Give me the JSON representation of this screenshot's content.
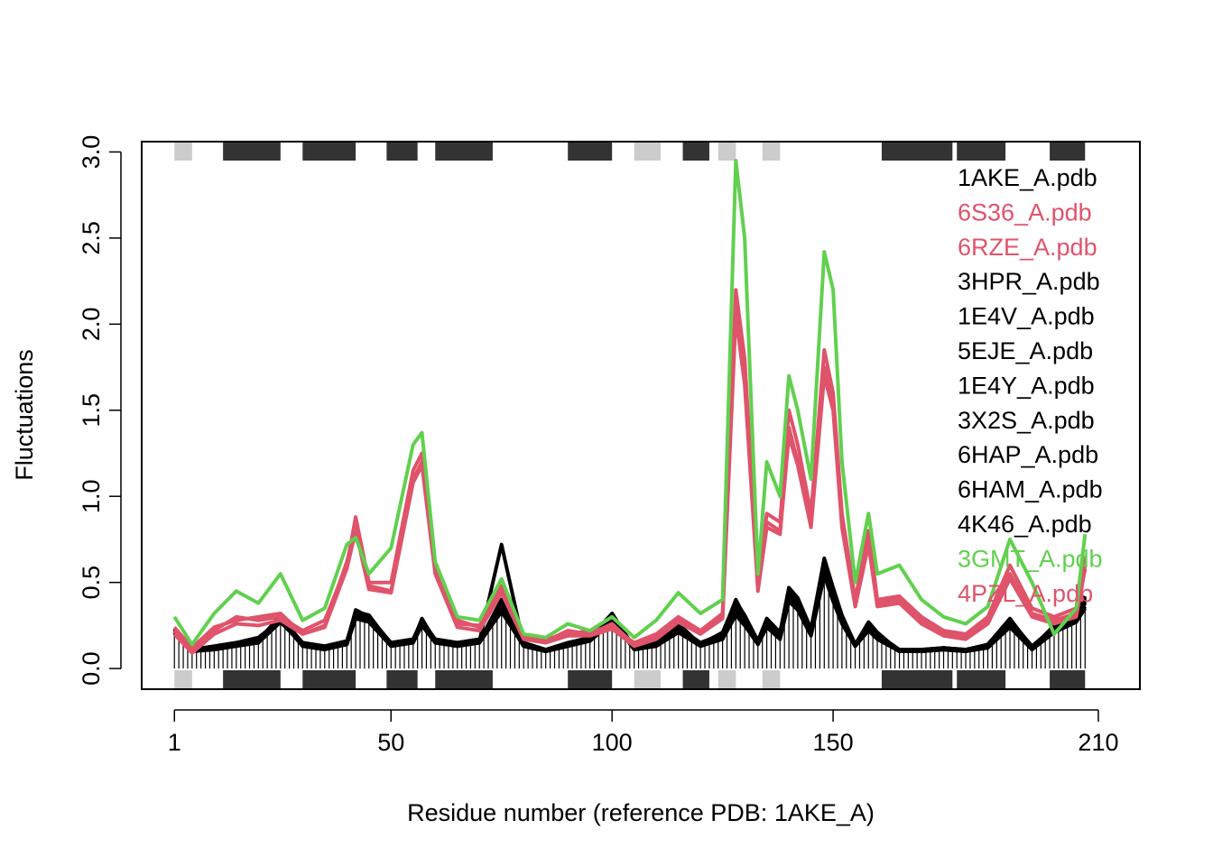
{
  "chart_data": {
    "type": "line",
    "title": "",
    "xlabel": "Residue number (reference PDB: 1AKE_A)",
    "ylabel": "Fluctuations",
    "xlim": [
      -6.4,
      219.4
    ],
    "ylim": [
      -0.12,
      3.06
    ],
    "xticks": [
      1,
      50,
      100,
      150,
      210
    ],
    "xtick_labels": [
      "1",
      "50",
      "100",
      "150",
      "210"
    ],
    "yticks": [
      0.0,
      0.5,
      1.0,
      1.5,
      2.0,
      2.5,
      3.0
    ],
    "ytick_labels": [
      "0.0",
      "0.5",
      "1.0",
      "1.5",
      "2.0",
      "2.5",
      "3.0"
    ],
    "grid": false,
    "legend_position": "right",
    "colors": {
      "black": "#000000",
      "red": "#DF536B",
      "green": "#61D04F",
      "sse_dark": "#333333",
      "sse_light": "#cccccc"
    },
    "secondary_structure": [
      {
        "start": 1,
        "end": 5,
        "type": "strand"
      },
      {
        "start": 12,
        "end": 25,
        "type": "helix"
      },
      {
        "start": 30,
        "end": 42,
        "type": "helix"
      },
      {
        "start": 49,
        "end": 56,
        "type": "helix"
      },
      {
        "start": 60,
        "end": 73,
        "type": "helix"
      },
      {
        "start": 90,
        "end": 100,
        "type": "helix"
      },
      {
        "start": 105,
        "end": 111,
        "type": "strand"
      },
      {
        "start": 116,
        "end": 122,
        "type": "helix"
      },
      {
        "start": 124,
        "end": 128,
        "type": "strand"
      },
      {
        "start": 134,
        "end": 138,
        "type": "strand"
      },
      {
        "start": 161,
        "end": 177,
        "type": "helix"
      },
      {
        "start": 178,
        "end": 189,
        "type": "helix"
      },
      {
        "start": 199,
        "end": 207,
        "type": "helix"
      }
    ],
    "x": [
      1,
      5,
      10,
      15,
      20,
      25,
      30,
      35,
      40,
      42,
      45,
      50,
      55,
      57,
      60,
      65,
      70,
      75,
      80,
      85,
      90,
      95,
      100,
      105,
      110,
      115,
      120,
      125,
      128,
      130,
      133,
      135,
      138,
      140,
      142,
      145,
      148,
      150,
      152,
      155,
      158,
      160,
      165,
      170,
      175,
      180,
      185,
      190,
      195,
      200,
      205,
      207
    ],
    "series": [
      {
        "name": "1AKE_A.pdb",
        "color": "#000000",
        "values": [
          0.22,
          0.1,
          0.12,
          0.14,
          0.16,
          0.3,
          0.14,
          0.12,
          0.15,
          0.33,
          0.3,
          0.14,
          0.16,
          0.28,
          0.16,
          0.14,
          0.16,
          0.38,
          0.14,
          0.1,
          0.14,
          0.18,
          0.3,
          0.12,
          0.14,
          0.24,
          0.14,
          0.2,
          0.38,
          0.3,
          0.16,
          0.28,
          0.2,
          0.45,
          0.4,
          0.22,
          0.62,
          0.45,
          0.3,
          0.14,
          0.26,
          0.2,
          0.1,
          0.1,
          0.12,
          0.1,
          0.14,
          0.28,
          0.12,
          0.24,
          0.3,
          0.4
        ]
      },
      {
        "name": "6S36_A.pdb",
        "color": "#DF536B",
        "values": [
          0.22,
          0.1,
          0.22,
          0.3,
          0.28,
          0.3,
          0.22,
          0.28,
          0.6,
          0.88,
          0.5,
          0.5,
          1.15,
          1.25,
          0.6,
          0.28,
          0.24,
          0.48,
          0.18,
          0.16,
          0.22,
          0.2,
          0.26,
          0.14,
          0.18,
          0.28,
          0.22,
          0.32,
          2.2,
          1.8,
          0.5,
          0.9,
          0.85,
          1.5,
          1.3,
          0.9,
          1.85,
          1.6,
          0.9,
          0.4,
          0.8,
          0.4,
          0.42,
          0.3,
          0.22,
          0.2,
          0.3,
          0.6,
          0.35,
          0.3,
          0.35,
          0.65
        ]
      },
      {
        "name": "6RZE_A.pdb",
        "color": "#DF536B",
        "values": [
          0.24,
          0.12,
          0.24,
          0.28,
          0.3,
          0.32,
          0.2,
          0.25,
          0.62,
          0.82,
          0.48,
          0.45,
          1.1,
          1.2,
          0.58,
          0.26,
          0.25,
          0.45,
          0.2,
          0.17,
          0.2,
          0.22,
          0.24,
          0.15,
          0.2,
          0.3,
          0.22,
          0.3,
          2.1,
          1.7,
          0.48,
          0.85,
          0.8,
          1.4,
          1.2,
          0.85,
          1.75,
          1.55,
          0.85,
          0.38,
          0.75,
          0.38,
          0.4,
          0.28,
          0.2,
          0.18,
          0.28,
          0.55,
          0.32,
          0.28,
          0.32,
          0.6
        ]
      },
      {
        "name": "3HPR_A.pdb",
        "color": "#000000",
        "values": [
          0.2,
          0.11,
          0.13,
          0.15,
          0.18,
          0.28,
          0.15,
          0.13,
          0.16,
          0.3,
          0.28,
          0.15,
          0.17,
          0.26,
          0.17,
          0.15,
          0.17,
          0.35,
          0.15,
          0.11,
          0.15,
          0.17,
          0.28,
          0.13,
          0.15,
          0.22,
          0.15,
          0.18,
          0.34,
          0.27,
          0.15,
          0.25,
          0.18,
          0.42,
          0.36,
          0.2,
          0.58,
          0.42,
          0.27,
          0.13,
          0.24,
          0.18,
          0.11,
          0.11,
          0.12,
          0.11,
          0.13,
          0.25,
          0.13,
          0.22,
          0.28,
          0.38
        ]
      },
      {
        "name": "1E4V_A.pdb",
        "color": "#000000",
        "values": [
          0.21,
          0.1,
          0.12,
          0.13,
          0.17,
          0.27,
          0.14,
          0.12,
          0.15,
          0.32,
          0.27,
          0.14,
          0.16,
          0.27,
          0.16,
          0.14,
          0.16,
          0.4,
          0.14,
          0.1,
          0.14,
          0.17,
          0.29,
          0.12,
          0.14,
          0.23,
          0.14,
          0.19,
          0.36,
          0.28,
          0.16,
          0.27,
          0.19,
          0.44,
          0.38,
          0.21,
          0.6,
          0.44,
          0.29,
          0.13,
          0.25,
          0.19,
          0.1,
          0.1,
          0.11,
          0.1,
          0.13,
          0.27,
          0.12,
          0.23,
          0.29,
          0.39
        ]
      },
      {
        "name": "5EJE_A.pdb",
        "color": "#000000",
        "values": [
          0.22,
          0.11,
          0.12,
          0.14,
          0.16,
          0.29,
          0.15,
          0.12,
          0.15,
          0.31,
          0.29,
          0.14,
          0.16,
          0.27,
          0.16,
          0.14,
          0.16,
          0.36,
          0.14,
          0.1,
          0.14,
          0.18,
          0.31,
          0.12,
          0.14,
          0.25,
          0.14,
          0.2,
          0.4,
          0.3,
          0.16,
          0.29,
          0.2,
          0.46,
          0.4,
          0.22,
          0.62,
          0.46,
          0.3,
          0.14,
          0.26,
          0.2,
          0.1,
          0.1,
          0.12,
          0.1,
          0.14,
          0.28,
          0.12,
          0.24,
          0.3,
          0.41
        ]
      },
      {
        "name": "1E4Y_A.pdb",
        "color": "#000000",
        "values": [
          0.23,
          0.1,
          0.12,
          0.14,
          0.16,
          0.3,
          0.14,
          0.12,
          0.15,
          0.34,
          0.3,
          0.14,
          0.16,
          0.28,
          0.16,
          0.14,
          0.16,
          0.72,
          0.14,
          0.1,
          0.14,
          0.18,
          0.3,
          0.12,
          0.14,
          0.24,
          0.14,
          0.2,
          0.38,
          0.3,
          0.16,
          0.28,
          0.2,
          0.45,
          0.4,
          0.22,
          0.62,
          0.45,
          0.3,
          0.14,
          0.26,
          0.2,
          0.1,
          0.1,
          0.12,
          0.1,
          0.14,
          0.28,
          0.12,
          0.24,
          0.3,
          0.4
        ]
      },
      {
        "name": "3X2S_A.pdb",
        "color": "#000000",
        "values": [
          0.21,
          0.1,
          0.11,
          0.13,
          0.15,
          0.28,
          0.13,
          0.11,
          0.14,
          0.3,
          0.28,
          0.13,
          0.15,
          0.26,
          0.15,
          0.13,
          0.15,
          0.34,
          0.13,
          0.1,
          0.13,
          0.17,
          0.28,
          0.11,
          0.13,
          0.22,
          0.13,
          0.18,
          0.32,
          0.26,
          0.15,
          0.25,
          0.18,
          0.4,
          0.35,
          0.2,
          0.55,
          0.4,
          0.27,
          0.13,
          0.23,
          0.18,
          0.1,
          0.1,
          0.11,
          0.1,
          0.13,
          0.25,
          0.11,
          0.22,
          0.28,
          0.36
        ]
      },
      {
        "name": "6HAP_A.pdb",
        "color": "#000000",
        "values": [
          0.22,
          0.1,
          0.12,
          0.14,
          0.16,
          0.31,
          0.14,
          0.12,
          0.15,
          0.33,
          0.31,
          0.14,
          0.16,
          0.29,
          0.16,
          0.14,
          0.16,
          0.37,
          0.14,
          0.1,
          0.14,
          0.18,
          0.32,
          0.12,
          0.14,
          0.26,
          0.14,
          0.21,
          0.39,
          0.31,
          0.16,
          0.29,
          0.21,
          0.47,
          0.41,
          0.23,
          0.64,
          0.47,
          0.31,
          0.14,
          0.27,
          0.21,
          0.1,
          0.1,
          0.12,
          0.1,
          0.14,
          0.29,
          0.12,
          0.25,
          0.31,
          0.42
        ]
      },
      {
        "name": "6HAM_A.pdb",
        "color": "#000000",
        "values": [
          0.2,
          0.1,
          0.12,
          0.14,
          0.15,
          0.27,
          0.14,
          0.12,
          0.14,
          0.29,
          0.27,
          0.13,
          0.15,
          0.25,
          0.15,
          0.13,
          0.15,
          0.33,
          0.13,
          0.1,
          0.13,
          0.16,
          0.27,
          0.12,
          0.13,
          0.21,
          0.13,
          0.17,
          0.31,
          0.25,
          0.14,
          0.24,
          0.17,
          0.39,
          0.34,
          0.19,
          0.54,
          0.39,
          0.26,
          0.13,
          0.22,
          0.17,
          0.1,
          0.1,
          0.11,
          0.1,
          0.12,
          0.24,
          0.11,
          0.21,
          0.27,
          0.35
        ]
      },
      {
        "name": "4K46_A.pdb",
        "color": "#000000",
        "values": [
          0.22,
          0.11,
          0.13,
          0.15,
          0.17,
          0.3,
          0.15,
          0.13,
          0.16,
          0.33,
          0.3,
          0.15,
          0.17,
          0.28,
          0.17,
          0.15,
          0.17,
          0.37,
          0.15,
          0.11,
          0.15,
          0.18,
          0.3,
          0.13,
          0.15,
          0.24,
          0.15,
          0.2,
          0.37,
          0.29,
          0.16,
          0.28,
          0.2,
          0.45,
          0.39,
          0.22,
          0.61,
          0.45,
          0.3,
          0.14,
          0.26,
          0.2,
          0.11,
          0.11,
          0.12,
          0.11,
          0.14,
          0.28,
          0.13,
          0.24,
          0.3,
          0.4
        ]
      },
      {
        "name": "3GMT_A.pdb",
        "color": "#61D04F",
        "values": [
          0.3,
          0.14,
          0.32,
          0.45,
          0.38,
          0.55,
          0.28,
          0.35,
          0.72,
          0.76,
          0.55,
          0.7,
          1.3,
          1.37,
          0.62,
          0.3,
          0.28,
          0.52,
          0.2,
          0.18,
          0.26,
          0.22,
          0.3,
          0.18,
          0.28,
          0.44,
          0.32,
          0.4,
          2.95,
          2.5,
          0.55,
          1.2,
          1.0,
          1.7,
          1.5,
          1.1,
          2.42,
          2.2,
          1.2,
          0.5,
          0.9,
          0.55,
          0.6,
          0.4,
          0.3,
          0.26,
          0.36,
          0.75,
          0.5,
          0.2,
          0.35,
          0.78
        ]
      },
      {
        "name": "4PZL_A.pdb",
        "color": "#DF536B",
        "values": [
          0.2,
          0.09,
          0.2,
          0.26,
          0.25,
          0.28,
          0.2,
          0.24,
          0.58,
          0.8,
          0.46,
          0.44,
          1.08,
          1.18,
          0.55,
          0.24,
          0.22,
          0.44,
          0.17,
          0.15,
          0.19,
          0.19,
          0.23,
          0.13,
          0.17,
          0.27,
          0.2,
          0.29,
          2.05,
          1.65,
          0.45,
          0.82,
          0.78,
          1.35,
          1.18,
          0.82,
          1.7,
          1.5,
          0.82,
          0.36,
          0.72,
          0.36,
          0.38,
          0.26,
          0.19,
          0.17,
          0.26,
          0.52,
          0.3,
          0.26,
          0.3,
          0.58
        ]
      }
    ]
  }
}
